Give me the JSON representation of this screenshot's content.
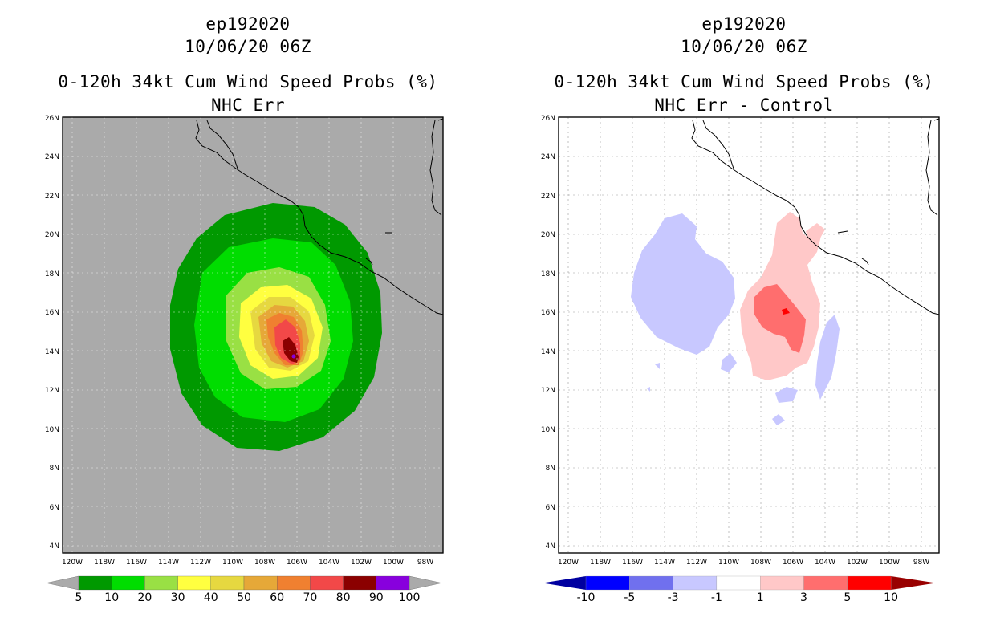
{
  "left": {
    "storm_id": "ep192020",
    "datetime": "10/06/20 06Z",
    "product": "0-120h 34kt Cum Wind Speed Probs (%)",
    "subtitle": "NHC Err",
    "background_color": "#aaaaaa",
    "colorbar": {
      "colors": [
        "#009900",
        "#00dd00",
        "#99e044",
        "#ffff40",
        "#e6d840",
        "#e6a838",
        "#f08030",
        "#f24848",
        "#8b0000",
        "#8800dd"
      ],
      "labels": [
        "5",
        "10",
        "20",
        "30",
        "40",
        "50",
        "60",
        "70",
        "80",
        "90",
        "100"
      ]
    }
  },
  "right": {
    "storm_id": "ep192020",
    "datetime": "10/06/20 06Z",
    "product": "0-120h 34kt Cum Wind Speed Probs (%)",
    "subtitle": "NHC Err - Control",
    "background_color": "#ffffff",
    "colorbar": {
      "colors": [
        "#0000a0",
        "#0000ff",
        "#7070ee",
        "#c8c8ff",
        "#ffffff",
        "#ffc8c8",
        "#ff6e6e",
        "#ff0000",
        "#990000"
      ],
      "labels": [
        "-10",
        "-5",
        "-3",
        "-1",
        "1",
        "3",
        "5",
        "10"
      ]
    }
  },
  "axes": {
    "lon_labels": [
      "120W",
      "118W",
      "116W",
      "114W",
      "112W",
      "110W",
      "108W",
      "106W",
      "104W",
      "102W",
      "100W",
      "98W"
    ],
    "lat_labels": [
      "26N",
      "24N",
      "22N",
      "20N",
      "18N",
      "16N",
      "14N",
      "12N",
      "10N",
      "8N",
      "6N",
      "4N"
    ]
  },
  "map_data": {
    "type": "filled_contour",
    "storm_center": {
      "lon": -106.0,
      "lat": 13.6
    },
    "lon_range": [
      -121,
      -97.5
    ],
    "lat_range": [
      3.5,
      26
    ]
  }
}
